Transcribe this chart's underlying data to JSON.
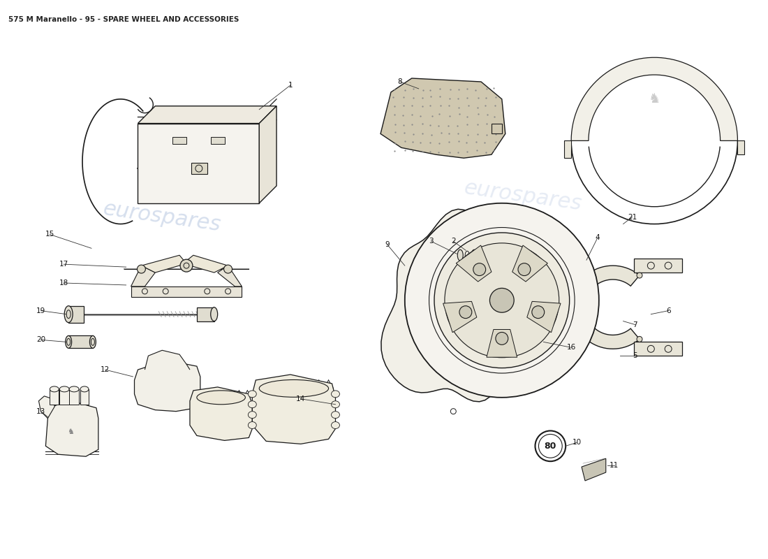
{
  "title": "575 M Maranello - 95 - SPARE WHEEL AND ACCESSORIES",
  "title_fontsize": 7.5,
  "background_color": "#ffffff",
  "line_color": "#1a1a1a",
  "watermark_color": "#c8d4e8",
  "watermark_text": "eurospares",
  "fig_width": 11.0,
  "fig_height": 8.0
}
